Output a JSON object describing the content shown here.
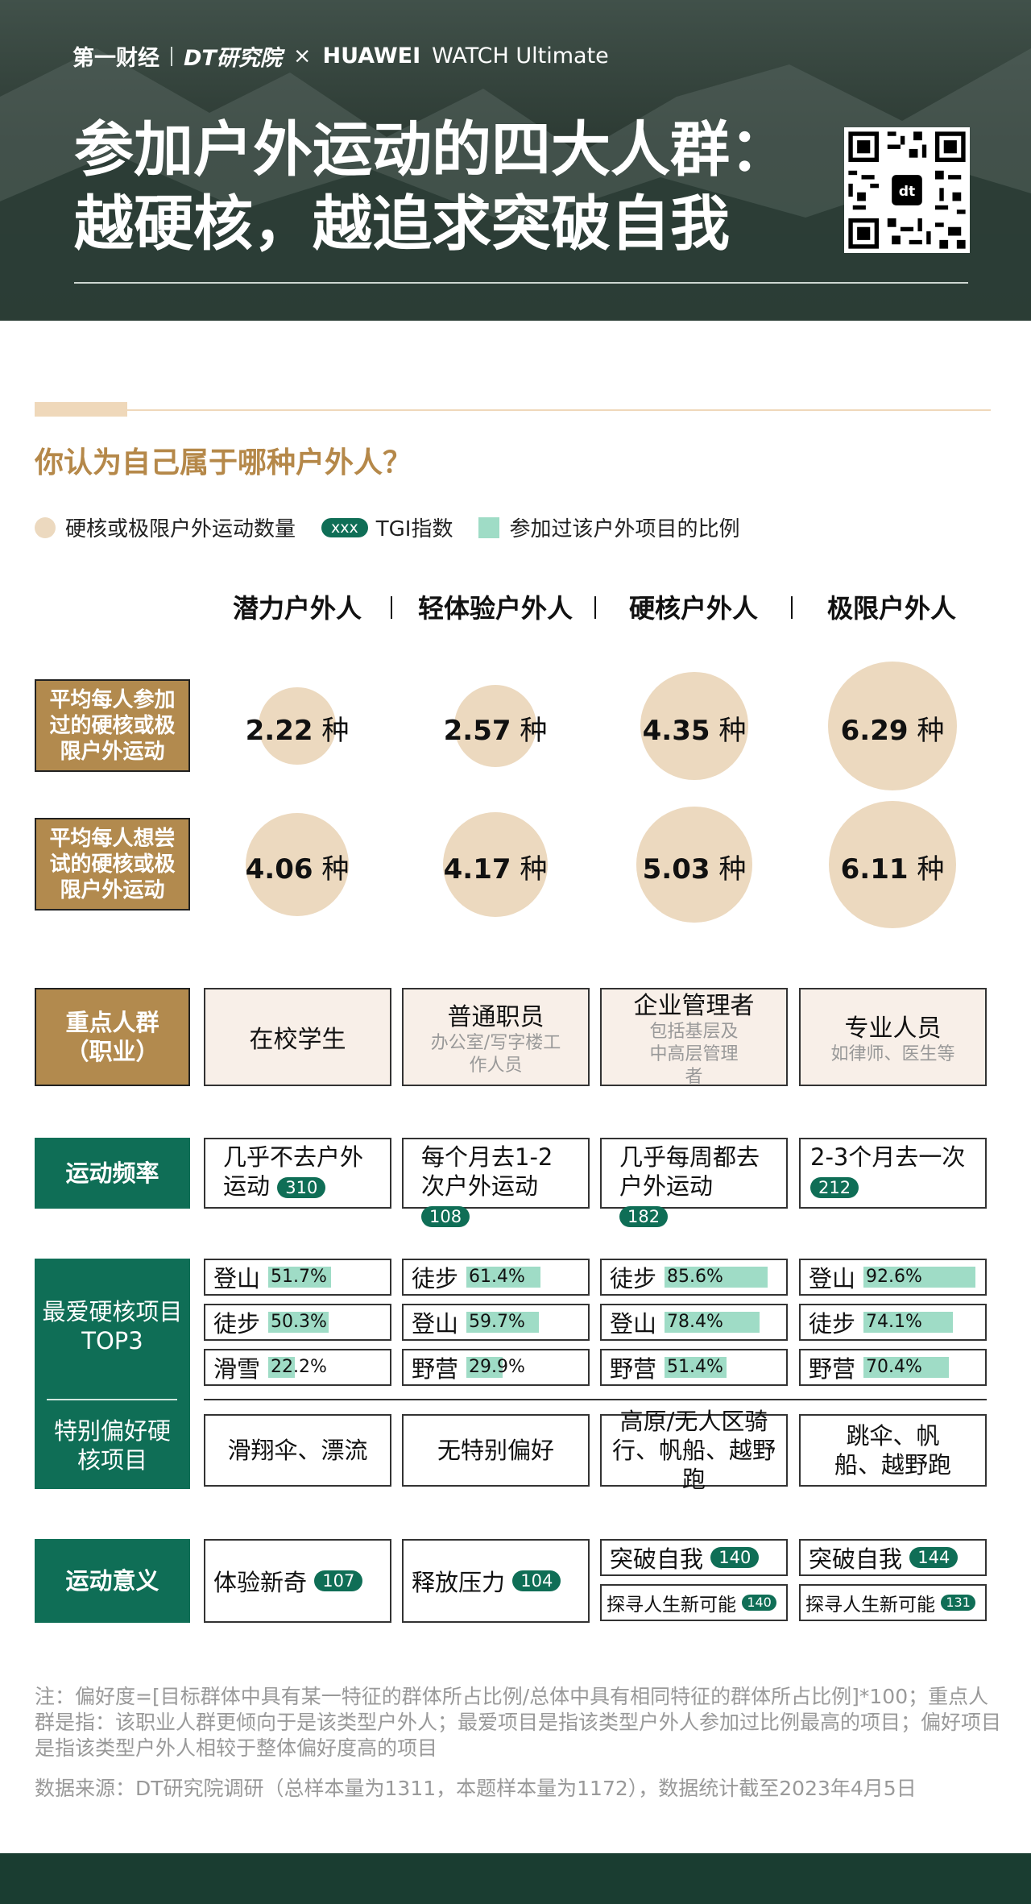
{
  "header": {
    "brand_yicai": "第一财经",
    "brand_dt": "DT研究院",
    "brand_x": "×",
    "brand_huawei": "HUAWEI",
    "brand_watch": "WATCH Ultimate",
    "title_line1": "参加户外运动的四大人群：",
    "title_line2": "越硬核，越追求突破自我"
  },
  "question": "你认为自己属于哪种户外人？",
  "legend": {
    "circle_label": "硬核或极限户外运动数量",
    "pill_text": "xxx",
    "pill_label": "TGI指数",
    "square_label": "参加过该户外项目的比例"
  },
  "columns": [
    "潜力户外人",
    "轻体验户外人",
    "硬核户外人",
    "极限户外人"
  ],
  "row_labels": {
    "avg_joined": "平均每人参加过的硬核或极限户外运动",
    "avg_want": "平均每人想尝试的硬核或极限户外运动",
    "occupation": "重点人群（职业）",
    "frequency": "运动频率",
    "top3": "最爱硬核项目TOP3",
    "preference": "特别偏好硬核项目",
    "meaning": "运动意义"
  },
  "unit": "种",
  "avg_joined": [
    2.22,
    2.57,
    4.35,
    6.29
  ],
  "avg_want": [
    4.06,
    4.17,
    5.03,
    6.11
  ],
  "occupation": [
    {
      "main": "在校学生",
      "sub": ""
    },
    {
      "main": "普通职员",
      "sub": "办公室/写字楼工作人员"
    },
    {
      "main": "企业管理者",
      "sub": "包括基层及中高层管理者"
    },
    {
      "main": "专业人员",
      "sub": "如律师、医生等"
    }
  ],
  "frequency": [
    {
      "text": "几乎不去户外运动",
      "tgi": "310"
    },
    {
      "text": "每个月去1-2次户外运动",
      "tgi": "108"
    },
    {
      "text": "几乎每周都去户外运动",
      "tgi": "182"
    },
    {
      "text": "2-3个月去一次",
      "tgi": "212"
    }
  ],
  "top3": [
    [
      {
        "name": "登山",
        "pct": "51.7%",
        "value": 51.7
      },
      {
        "name": "徒步",
        "pct": "50.3%",
        "value": 50.3
      },
      {
        "name": "滑雪",
        "pct": "22.2%",
        "value": 22.2
      }
    ],
    [
      {
        "name": "徒步",
        "pct": "61.4%",
        "value": 61.4
      },
      {
        "name": "登山",
        "pct": "59.7%",
        "value": 59.7
      },
      {
        "name": "野营",
        "pct": "29.9%",
        "value": 29.9
      }
    ],
    [
      {
        "name": "徒步",
        "pct": "85.6%",
        "value": 85.6
      },
      {
        "name": "登山",
        "pct": "78.4%",
        "value": 78.4
      },
      {
        "name": "野营",
        "pct": "51.4%",
        "value": 51.4
      }
    ],
    [
      {
        "name": "登山",
        "pct": "92.6%",
        "value": 92.6
      },
      {
        "name": "徒步",
        "pct": "74.1%",
        "value": 74.1
      },
      {
        "name": "野营",
        "pct": "70.4%",
        "value": 70.4
      }
    ]
  ],
  "preference": [
    "滑翔伞、漂流",
    "无特别偏好",
    "高原/无人区骑行、帆船、越野跑",
    "跳伞、帆船、越野跑"
  ],
  "meaning": [
    {
      "text": "体验新奇",
      "tgi": "107"
    },
    {
      "text": "释放压力",
      "tgi": "104"
    },
    {
      "text": "突破自我",
      "tgi": "140",
      "text2": "探寻人生新可能",
      "tgi2": "140"
    },
    {
      "text": "突破自我",
      "tgi": "144",
      "text2": "探寻人生新可能",
      "tgi2": "131"
    }
  ],
  "note_1": "注：偏好度=[目标群体中具有某一特征的群体所占比例/总体中具有相同特征的群体所占比例]*100；重点人群是指：该职业人群更倾向于是该类型户外人；最爱项目是指该类型户外人参加过比例最高的项目；偏好项目是指该类型户外人相较于整体偏好度高的项目",
  "note_2": "数据来源：DT研究院调研（总样本量为1311，本题样本量为1172），数据统计截至2023年4月5日",
  "colors": {
    "green": "#0f6e56",
    "tan": "#b28a4e",
    "bubble": "#ecd9bf",
    "bar": "#9fdcc6",
    "gold": "#b58849"
  }
}
